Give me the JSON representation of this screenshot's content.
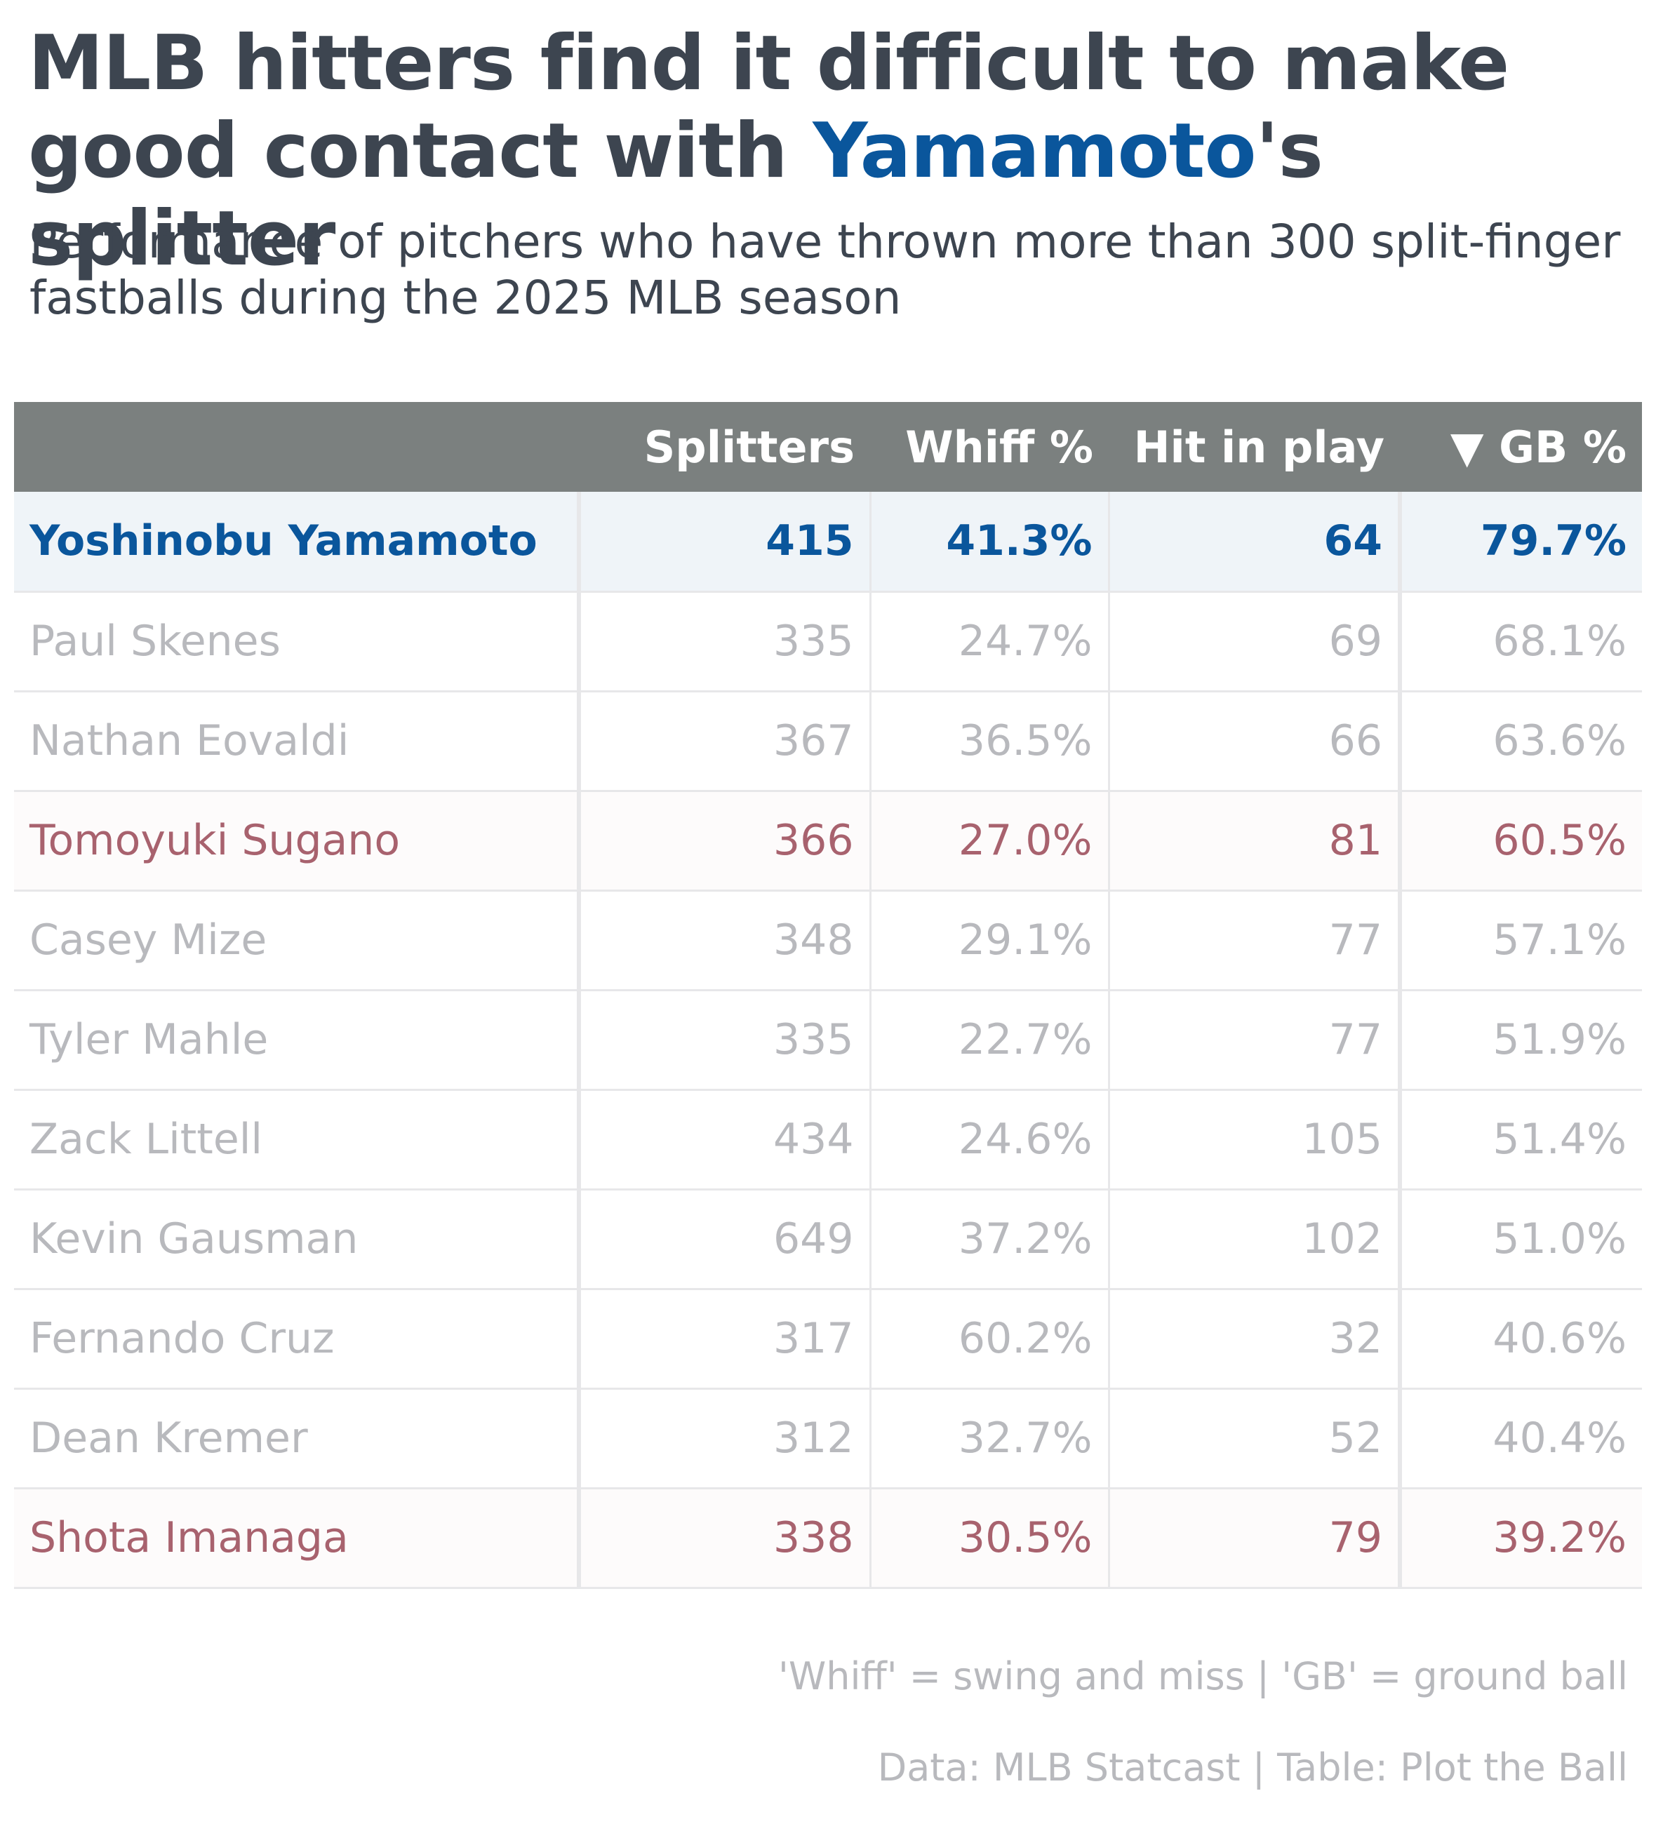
{
  "chart_data": {
    "type": "table",
    "title_parts": {
      "before": "MLB hitters find it difficult to make good contact with ",
      "highlight": "Yamamoto",
      "after": "'s splitter"
    },
    "subtitle": "Performance of pitchers who have thrown more than 300 split-finger fastballs during the 2025 MLB season",
    "columns": [
      "",
      "Splitters",
      "Whiff %",
      "Hit in play",
      "▼ GB %"
    ],
    "sorted_by": "GB %",
    "sort_direction": "descending",
    "rows": [
      {
        "name": "Yoshinobu Yamamoto",
        "splitters": "415",
        "whiff": "41.3%",
        "hit_in_play": "64",
        "gb": "79.7%",
        "highlight": "blue"
      },
      {
        "name": "Paul Skenes",
        "splitters": "335",
        "whiff": "24.7%",
        "hit_in_play": "69",
        "gb": "68.1%",
        "highlight": "none"
      },
      {
        "name": "Nathan Eovaldi",
        "splitters": "367",
        "whiff": "36.5%",
        "hit_in_play": "66",
        "gb": "63.6%",
        "highlight": "none"
      },
      {
        "name": "Tomoyuki Sugano",
        "splitters": "366",
        "whiff": "27.0%",
        "hit_in_play": "81",
        "gb": "60.5%",
        "highlight": "red"
      },
      {
        "name": "Casey Mize",
        "splitters": "348",
        "whiff": "29.1%",
        "hit_in_play": "77",
        "gb": "57.1%",
        "highlight": "none"
      },
      {
        "name": "Tyler Mahle",
        "splitters": "335",
        "whiff": "22.7%",
        "hit_in_play": "77",
        "gb": "51.9%",
        "highlight": "none"
      },
      {
        "name": "Zack Littell",
        "splitters": "434",
        "whiff": "24.6%",
        "hit_in_play": "105",
        "gb": "51.4%",
        "highlight": "none"
      },
      {
        "name": "Kevin Gausman",
        "splitters": "649",
        "whiff": "37.2%",
        "hit_in_play": "102",
        "gb": "51.0%",
        "highlight": "none"
      },
      {
        "name": "Fernando Cruz",
        "splitters": "317",
        "whiff": "60.2%",
        "hit_in_play": "32",
        "gb": "40.6%",
        "highlight": "none"
      },
      {
        "name": "Dean Kremer",
        "splitters": "312",
        "whiff": "32.7%",
        "hit_in_play": "52",
        "gb": "40.4%",
        "highlight": "none"
      },
      {
        "name": "Shota Imanaga",
        "splitters": "338",
        "whiff": "30.5%",
        "hit_in_play": "79",
        "gb": "39.2%",
        "highlight": "red"
      }
    ],
    "colors": {
      "title": "#3d4550",
      "highlight_blue": "#0a569c",
      "highlight_red": "#a8626e",
      "muted_text": "#b8b9bd",
      "header_bg": "#7b807f"
    }
  },
  "footer": {
    "note": "'Whiff' = swing and miss | 'GB' = ground ball",
    "source": "Data: MLB Statcast | Table: Plot the Ball"
  }
}
